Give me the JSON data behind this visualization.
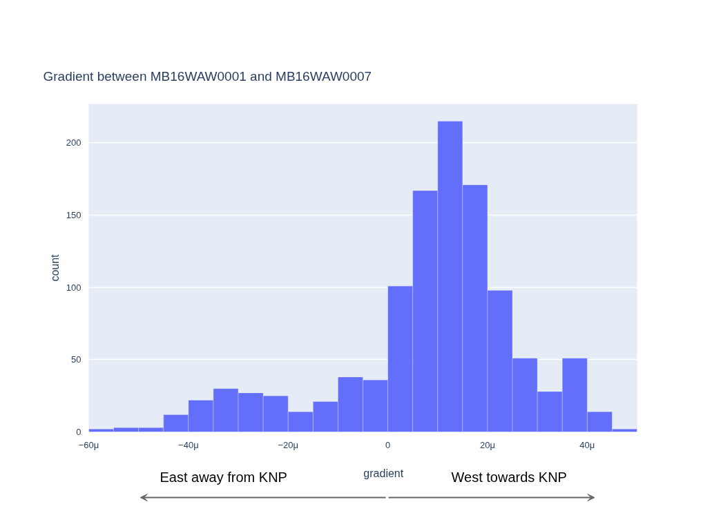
{
  "chart_data": {
    "type": "histogram",
    "title": "Gradient between MB16WAW0001 and MB16WAW0007",
    "xlabel": "gradient",
    "ylabel": "count",
    "bins": [
      -60,
      -55,
      -50,
      -45,
      -40,
      -35,
      -30,
      -25,
      -20,
      -15,
      -10,
      -5,
      0,
      5,
      10,
      15,
      20,
      25,
      30,
      35,
      40,
      45,
      50
    ],
    "values": [
      2,
      3,
      3,
      12,
      22,
      30,
      27,
      25,
      14,
      21,
      38,
      36,
      101,
      167,
      215,
      171,
      98,
      51,
      28,
      51,
      14,
      2
    ],
    "color": "#636efa",
    "xlim": [
      -60,
      50
    ],
    "xticks": [
      {
        "value": -60,
        "label": "−60μ"
      },
      {
        "value": -40,
        "label": "−40μ"
      },
      {
        "value": -20,
        "label": "−20μ"
      },
      0,
      {
        "value": 20,
        "label": "20μ"
      },
      {
        "value": 40,
        "label": "40μ"
      }
    ],
    "ylim": [
      0,
      227
    ],
    "yticks": [
      0,
      50,
      100,
      150,
      200
    ],
    "grid": "y",
    "annotations": [
      "East away from KNP",
      "West towards KNP"
    ]
  }
}
